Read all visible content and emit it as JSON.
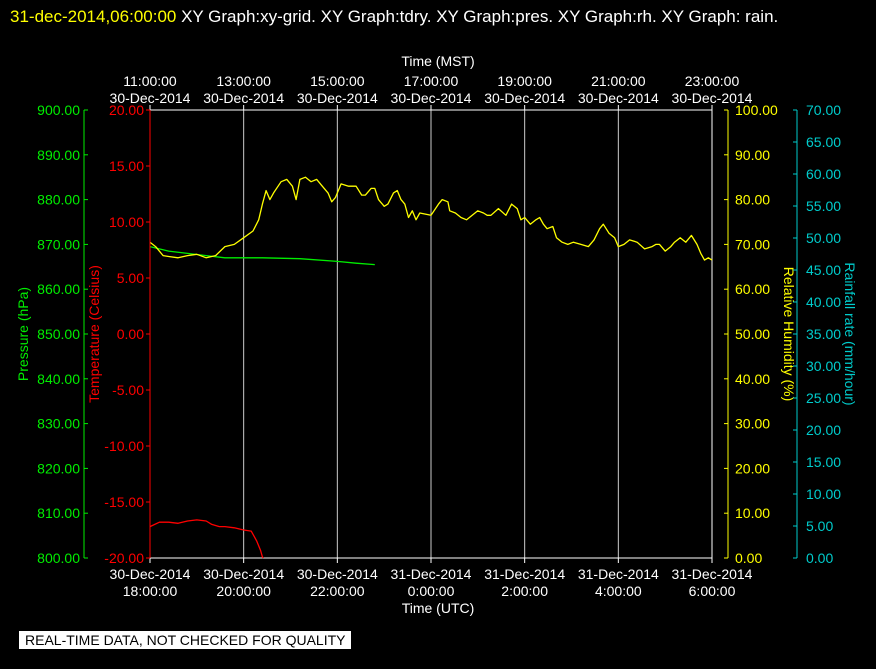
{
  "header": {
    "datetime": "31-dec-2014,06:00:00",
    "text": "  XY Graph:xy-grid.  XY Graph:tdry.  XY Graph:pres.  XY Graph:rh.  XY Graph: rain."
  },
  "footer": {
    "notice": "REAL-TIME DATA, NOT CHECKED FOR QUALITY"
  },
  "colors": {
    "temperature": "#ff0000",
    "pressure": "#00ee00",
    "humidity": "#ffff00",
    "rainfall": "#00cccc",
    "grid": "#ffffff",
    "text": "#ffffff"
  },
  "chart_data": {
    "type": "line",
    "x_range_utc_hours": [
      18,
      48
    ],
    "top_axis": {
      "label": "Time (MST)",
      "ticks": [
        {
          "time": "11:00:00",
          "date": "30-Dec-2014"
        },
        {
          "time": "13:00:00",
          "date": "30-Dec-2014"
        },
        {
          "time": "15:00:00",
          "date": "30-Dec-2014"
        },
        {
          "time": "17:00:00",
          "date": "30-Dec-2014"
        },
        {
          "time": "19:00:00",
          "date": "30-Dec-2014"
        },
        {
          "time": "21:00:00",
          "date": "30-Dec-2014"
        },
        {
          "time": "23:00:00",
          "date": "30-Dec-2014"
        }
      ]
    },
    "bottom_axis": {
      "label": "Time (UTC)",
      "ticks": [
        {
          "date": "30-Dec-2014",
          "time": "18:00:00"
        },
        {
          "date": "30-Dec-2014",
          "time": "20:00:00"
        },
        {
          "date": "30-Dec-2014",
          "time": "22:00:00"
        },
        {
          "date": "31-Dec-2014",
          "time": "0:00:00"
        },
        {
          "date": "31-Dec-2014",
          "time": "2:00:00"
        },
        {
          "date": "31-Dec-2014",
          "time": "4:00:00"
        },
        {
          "date": "31-Dec-2014",
          "time": "6:00:00"
        }
      ]
    },
    "pressure_axis": {
      "label": "Pressure (hPa)",
      "min": 800,
      "max": 900,
      "ticks": [
        "900.00",
        "890.00",
        "880.00",
        "870.00",
        "860.00",
        "850.00",
        "840.00",
        "830.00",
        "820.00",
        "810.00",
        "800.00"
      ]
    },
    "temperature_axis": {
      "label": "Temperature (Celsius)",
      "min": -20,
      "max": 20,
      "ticks": [
        "20.00",
        "15.00",
        "10.00",
        "5.00",
        "0.00",
        "-5.00",
        "-10.00",
        "-15.00",
        "-20.00"
      ]
    },
    "humidity_axis": {
      "label": "Relative Humidity (%)",
      "min": 0,
      "max": 100,
      "ticks": [
        "100.00",
        "90.00",
        "80.00",
        "70.00",
        "60.00",
        "50.00",
        "40.00",
        "30.00",
        "20.00",
        "10.00",
        "0.00"
      ]
    },
    "rainfall_axis": {
      "label": "Rainfall rate (mm/hour)",
      "min": 0,
      "max": 70,
      "ticks": [
        "70.00",
        "65.00",
        "60.00",
        "55.00",
        "50.00",
        "45.00",
        "40.00",
        "35.00",
        "30.00",
        "25.00",
        "20.00",
        "15.00",
        "10.00",
        "5.00",
        "0.00"
      ]
    },
    "series": [
      {
        "name": "Temperature",
        "axis": "temperature",
        "points": [
          [
            18.0,
            -17.2
          ],
          [
            18.5,
            -16.8
          ],
          [
            19.0,
            -16.8
          ],
          [
            19.5,
            -16.9
          ],
          [
            20.0,
            -16.7
          ],
          [
            20.5,
            -16.6
          ],
          [
            21.0,
            -16.7
          ],
          [
            21.3,
            -17.0
          ],
          [
            21.7,
            -17.2
          ],
          [
            22.0,
            -17.2
          ],
          [
            22.5,
            -17.3
          ],
          [
            23.0,
            -17.5
          ],
          [
            23.4,
            -17.6
          ],
          [
            23.7,
            -18.5
          ],
          [
            23.9,
            -19.3
          ],
          [
            24.0,
            -19.9
          ],
          [
            24.05,
            -20.0
          ]
        ]
      },
      {
        "name": "Pressure",
        "axis": "pressure",
        "points": [
          [
            18.0,
            869.5
          ],
          [
            19.0,
            868.5
          ],
          [
            20.0,
            868.0
          ],
          [
            21.0,
            867.5
          ],
          [
            22.0,
            867.0
          ],
          [
            24.0,
            867.0
          ],
          [
            26.0,
            866.8
          ],
          [
            28.0,
            866.2
          ],
          [
            29.0,
            865.8
          ],
          [
            30.0,
            865.5
          ]
        ]
      },
      {
        "name": "Relative Humidity",
        "axis": "humidity",
        "points": [
          [
            18.0,
            70.5
          ],
          [
            18.3,
            69.5
          ],
          [
            18.7,
            67.5
          ],
          [
            19.0,
            67.3
          ],
          [
            19.5,
            67.0
          ],
          [
            20.0,
            67.5
          ],
          [
            20.5,
            67.8
          ],
          [
            21.0,
            67.0
          ],
          [
            21.5,
            67.5
          ],
          [
            22.0,
            69.5
          ],
          [
            22.5,
            70.0
          ],
          [
            23.0,
            71.5
          ],
          [
            23.5,
            73.0
          ],
          [
            23.8,
            75.5
          ],
          [
            24.0,
            79.0
          ],
          [
            24.2,
            82.0
          ],
          [
            24.4,
            80.0
          ],
          [
            24.6,
            81.5
          ],
          [
            25.0,
            84.0
          ],
          [
            25.3,
            84.5
          ],
          [
            25.6,
            83.0
          ],
          [
            25.8,
            80.0
          ],
          [
            26.0,
            84.5
          ],
          [
            26.3,
            85.0
          ],
          [
            26.6,
            84.0
          ],
          [
            26.9,
            84.5
          ],
          [
            27.2,
            83.0
          ],
          [
            27.5,
            81.5
          ],
          [
            27.7,
            79.5
          ],
          [
            27.9,
            80.5
          ],
          [
            28.2,
            83.5
          ],
          [
            28.6,
            83.0
          ],
          [
            29.0,
            83.0
          ],
          [
            29.3,
            81.0
          ],
          [
            29.5,
            81.0
          ],
          [
            29.8,
            82.5
          ],
          [
            30.0,
            82.5
          ],
          [
            30.2,
            80.0
          ],
          [
            30.5,
            78.5
          ],
          [
            30.7,
            79.0
          ],
          [
            31.0,
            81.5
          ],
          [
            31.2,
            82.0
          ],
          [
            31.4,
            80.0
          ],
          [
            31.6,
            79.0
          ],
          [
            31.8,
            76.0
          ],
          [
            32.0,
            77.5
          ],
          [
            32.2,
            75.5
          ],
          [
            32.4,
            77.0
          ],
          [
            33.0,
            76.5
          ],
          [
            33.4,
            79.0
          ],
          [
            33.6,
            80.0
          ],
          [
            33.9,
            79.5
          ],
          [
            34.0,
            77.5
          ],
          [
            34.3,
            77.0
          ],
          [
            34.6,
            76.0
          ],
          [
            34.9,
            75.5
          ],
          [
            35.2,
            76.5
          ],
          [
            35.5,
            77.5
          ],
          [
            35.8,
            77.0
          ],
          [
            36.0,
            76.5
          ],
          [
            36.2,
            76.5
          ],
          [
            36.6,
            78.0
          ],
          [
            37.0,
            76.5
          ],
          [
            37.3,
            79.0
          ],
          [
            37.6,
            78.0
          ],
          [
            37.8,
            75.5
          ],
          [
            38.0,
            76.0
          ],
          [
            38.3,
            74.5
          ],
          [
            38.6,
            75.5
          ],
          [
            38.8,
            76.0
          ],
          [
            39.0,
            74.5
          ],
          [
            39.2,
            73.5
          ],
          [
            39.5,
            74.0
          ],
          [
            39.7,
            71.5
          ],
          [
            40.0,
            70.5
          ],
          [
            40.3,
            70.0
          ],
          [
            40.6,
            70.5
          ],
          [
            41.0,
            70.0
          ],
          [
            41.4,
            69.5
          ],
          [
            41.7,
            71.0
          ],
          [
            42.0,
            73.5
          ],
          [
            42.2,
            74.5
          ],
          [
            42.5,
            72.5
          ],
          [
            42.8,
            71.5
          ],
          [
            43.0,
            69.5
          ],
          [
            43.3,
            70.0
          ],
          [
            43.6,
            71.0
          ],
          [
            44.0,
            70.5
          ],
          [
            44.4,
            69.0
          ],
          [
            44.8,
            69.5
          ],
          [
            45.0,
            70.0
          ],
          [
            45.2,
            70.0
          ],
          [
            45.5,
            68.5
          ],
          [
            45.8,
            69.5
          ],
          [
            46.0,
            70.5
          ],
          [
            46.3,
            71.5
          ],
          [
            46.6,
            70.5
          ],
          [
            46.9,
            72.0
          ],
          [
            47.2,
            70.0
          ],
          [
            47.4,
            68.0
          ],
          [
            47.6,
            66.5
          ],
          [
            47.8,
            67.0
          ],
          [
            48.0,
            66.5
          ]
        ]
      }
    ]
  }
}
